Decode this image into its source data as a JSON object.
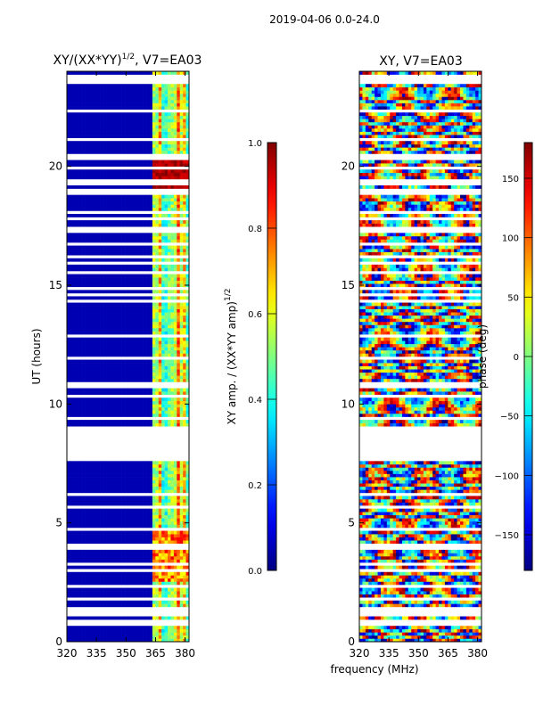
{
  "suptitle": "2019-04-06 0.0-24.0",
  "chart_data": [
    {
      "type": "heatmap",
      "title": "XY/(XX*YY)",
      "title_exp": "1/2",
      "title_suffix": ", V7=EA03",
      "xlabel": "",
      "ylabel": "UT (hours)",
      "xlim": [
        320,
        382
      ],
      "ylim": [
        0,
        24
      ],
      "xticks": [
        320,
        335,
        350,
        365,
        380
      ],
      "yticks": [
        0,
        5,
        10,
        15,
        20
      ],
      "colorbar": {
        "label": "XY amp. / (XX*YY amp)",
        "label_exp": "1/2",
        "range": [
          0.0,
          1.0
        ],
        "ticks": [
          "0.0",
          "0.2",
          "0.4",
          "0.6",
          "0.8",
          "1.0"
        ],
        "tick_values": [
          0.0,
          0.2,
          0.4,
          0.6,
          0.8,
          1.0
        ],
        "colormap": "jet"
      },
      "data_gap_hours": [
        7.7,
        9.0
      ],
      "signal_band_mhz": [
        363,
        382
      ],
      "background_value": 0.05
    },
    {
      "type": "heatmap",
      "title": "XY, V7=EA03",
      "xlabel": "frequency (MHz)",
      "ylabel": "",
      "xlim": [
        320,
        382
      ],
      "ylim": [
        0,
        24
      ],
      "xticks": [
        320,
        335,
        350,
        365,
        380
      ],
      "yticks": [
        0,
        5,
        10,
        15,
        20
      ],
      "colorbar": {
        "label": "phase (deg)",
        "range": [
          -180,
          180
        ],
        "ticks": [
          "150",
          "100",
          "50",
          "0",
          "−50",
          "−100",
          "−150"
        ],
        "tick_values": [
          150,
          100,
          50,
          0,
          -50,
          -100,
          -150
        ],
        "colormap": "jet"
      },
      "data_gap_hours": [
        7.7,
        9.0
      ]
    }
  ]
}
